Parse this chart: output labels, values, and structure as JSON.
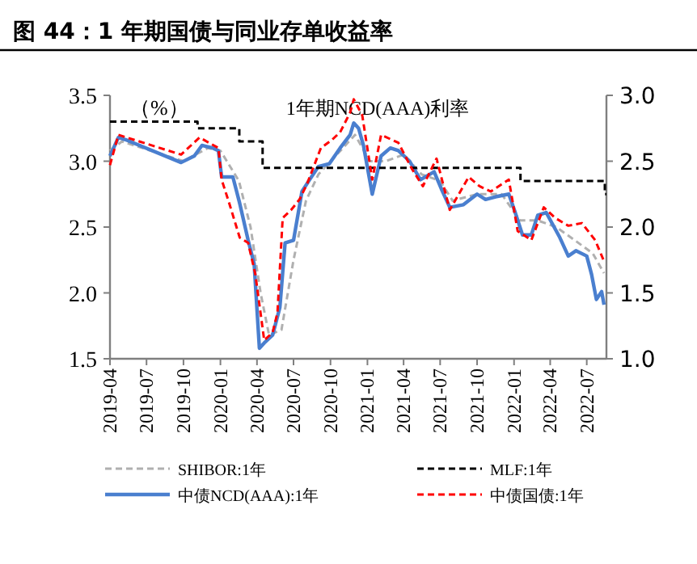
{
  "chart_data": {
    "type": "line",
    "title": "图 44：1 年期国债与同业存单收益率",
    "subtitle": "1年期NCD(AAA)利率",
    "ylabel": "（%）",
    "xlim": [
      "2019-04-01",
      "2022-08-19"
    ],
    "xticks": [
      "2019-04",
      "2019-07",
      "2019-10",
      "2020-01",
      "2020-04",
      "2020-07",
      "2020-10",
      "2021-01",
      "2021-04",
      "2021-07",
      "2021-10",
      "2022-01",
      "2022-04",
      "2022-07"
    ],
    "ylim": [
      1.5,
      3.5
    ],
    "yticks": [
      1.5,
      {
        "value": 2,
        "label": "2.0"
      },
      2.5,
      {
        "value": 3,
        "label": "3.0"
      },
      3.5
    ],
    "y2lim": [
      1.0,
      3.0
    ],
    "y2ticks": [
      {
        "value": 1,
        "label": "1.0"
      },
      1.5,
      {
        "value": 2,
        "label": "2.0"
      },
      2.5,
      {
        "value": 3,
        "label": "3.0"
      }
    ],
    "grid": false,
    "legend": "bottom",
    "marker": "none",
    "series": [
      {
        "name": "SHIBOR:1年",
        "color": "#b0b0b0",
        "line_style": "dashed",
        "x": [
          "2019-04-01",
          "2019-05-01",
          "2019-10-01",
          "2019-12-01",
          "2020-01-01",
          "2020-02-16",
          "2020-03-16",
          "2020-04-10",
          "2020-05-01",
          "2020-06-01",
          "2020-07-01",
          "2020-08-01",
          "2020-09-01",
          "2020-11-01",
          "2020-12-01",
          "2021-01-07",
          "2021-02-16",
          "2021-04-01",
          "2021-05-16",
          "2021-07-01",
          "2021-08-01",
          "2021-10-01",
          "2021-12-01",
          "2022-01-16",
          "2022-03-01",
          "2022-04-16",
          "2022-06-01",
          "2022-07-16",
          "2022-08-13"
        ],
        "values": [
          3.08,
          3.15,
          3.0,
          3.1,
          3.08,
          2.85,
          2.5,
          2.0,
          1.68,
          1.72,
          2.25,
          2.7,
          2.9,
          3.1,
          3.2,
          3.0,
          3.0,
          3.05,
          2.9,
          2.85,
          2.7,
          2.75,
          2.75,
          2.55,
          2.55,
          2.5,
          2.4,
          2.3,
          2.15
        ]
      },
      {
        "name": "中债NCD(AAA):1年",
        "color": "#4a7fcf",
        "line_style": "solid",
        "x": [
          "2019-04-01",
          "2019-04-22",
          "2019-05-13",
          "2019-09-25",
          "2019-10-28",
          "2019-11-16",
          "2019-12-13",
          "2019-12-27",
          "2020-01-04",
          "2020-02-01",
          "2020-02-18",
          "2020-03-10",
          "2020-03-25",
          "2020-04-07",
          "2020-04-19",
          "2020-05-10",
          "2020-05-28",
          "2020-06-10",
          "2020-07-01",
          "2020-07-22",
          "2020-08-10",
          "2020-09-01",
          "2020-09-28",
          "2020-10-25",
          "2020-11-19",
          "2020-11-28",
          "2020-12-10",
          "2020-12-22",
          "2021-01-13",
          "2021-02-04",
          "2021-02-27",
          "2021-03-19",
          "2021-04-16",
          "2021-05-13",
          "2021-06-16",
          "2021-07-04",
          "2021-07-25",
          "2021-08-28",
          "2021-10-01",
          "2021-10-22",
          "2021-11-16",
          "2021-12-19",
          "2022-01-04",
          "2022-01-22",
          "2022-02-13",
          "2022-03-01",
          "2022-03-22",
          "2022-04-25",
          "2022-05-16",
          "2022-06-04",
          "2022-07-01",
          "2022-07-13",
          "2022-07-25",
          "2022-08-07",
          "2022-08-13"
        ],
        "values": [
          3.04,
          3.18,
          3.16,
          2.99,
          3.04,
          3.12,
          3.1,
          3.08,
          2.88,
          2.88,
          2.68,
          2.4,
          2.22,
          1.58,
          1.62,
          1.68,
          1.89,
          2.38,
          2.4,
          2.77,
          2.86,
          2.96,
          2.98,
          3.1,
          3.2,
          3.29,
          3.25,
          3.12,
          2.75,
          3.04,
          3.1,
          3.08,
          3.0,
          2.86,
          2.92,
          2.79,
          2.65,
          2.67,
          2.75,
          2.71,
          2.73,
          2.75,
          2.61,
          2.44,
          2.44,
          2.59,
          2.61,
          2.42,
          2.28,
          2.32,
          2.28,
          2.14,
          1.95,
          2.01,
          1.91
        ]
      },
      {
        "name": "MLF:1年",
        "type": "step",
        "color": "#000000",
        "line_style": "dashed",
        "x": [
          "2019-04-01",
          "2019-11-05",
          "2020-02-17",
          "2020-04-15",
          "2022-01-17",
          "2022-08-15",
          "2022-08-19"
        ],
        "values": [
          3.3,
          3.25,
          3.15,
          2.95,
          2.85,
          2.75,
          2.75
        ]
      },
      {
        "name": "中债国债:1年",
        "color": "#ff0000",
        "line_style": "dashed",
        "axis": "y2",
        "x": [
          "2019-04-01",
          "2019-04-22",
          "2019-09-25",
          "2019-11-10",
          "2019-12-27",
          "2020-01-04",
          "2020-01-22",
          "2020-02-18",
          "2020-03-10",
          "2020-03-28",
          "2020-04-19",
          "2020-05-10",
          "2020-05-22",
          "2020-06-04",
          "2020-06-25",
          "2020-07-16",
          "2020-08-04",
          "2020-09-07",
          "2020-10-04",
          "2020-10-25",
          "2020-11-19",
          "2020-11-28",
          "2020-12-19",
          "2021-01-13",
          "2021-02-04",
          "2021-03-19",
          "2021-04-22",
          "2021-05-19",
          "2021-06-22",
          "2021-07-25",
          "2021-09-10",
          "2021-10-07",
          "2021-11-04",
          "2021-12-19",
          "2022-01-10",
          "2022-02-13",
          "2022-03-16",
          "2022-04-13",
          "2022-05-16",
          "2022-06-19",
          "2022-07-22",
          "2022-08-13"
        ],
        "values": [
          2.47,
          2.7,
          2.55,
          2.68,
          2.6,
          2.36,
          2.19,
          1.92,
          1.88,
          1.64,
          1.14,
          1.2,
          1.35,
          2.07,
          2.13,
          2.21,
          2.33,
          2.6,
          2.66,
          2.72,
          2.87,
          2.97,
          2.85,
          2.36,
          2.7,
          2.64,
          2.44,
          2.31,
          2.52,
          2.13,
          2.38,
          2.31,
          2.27,
          2.36,
          1.97,
          1.9,
          2.15,
          2.07,
          2.01,
          2.03,
          1.9,
          1.74
        ]
      }
    ]
  }
}
